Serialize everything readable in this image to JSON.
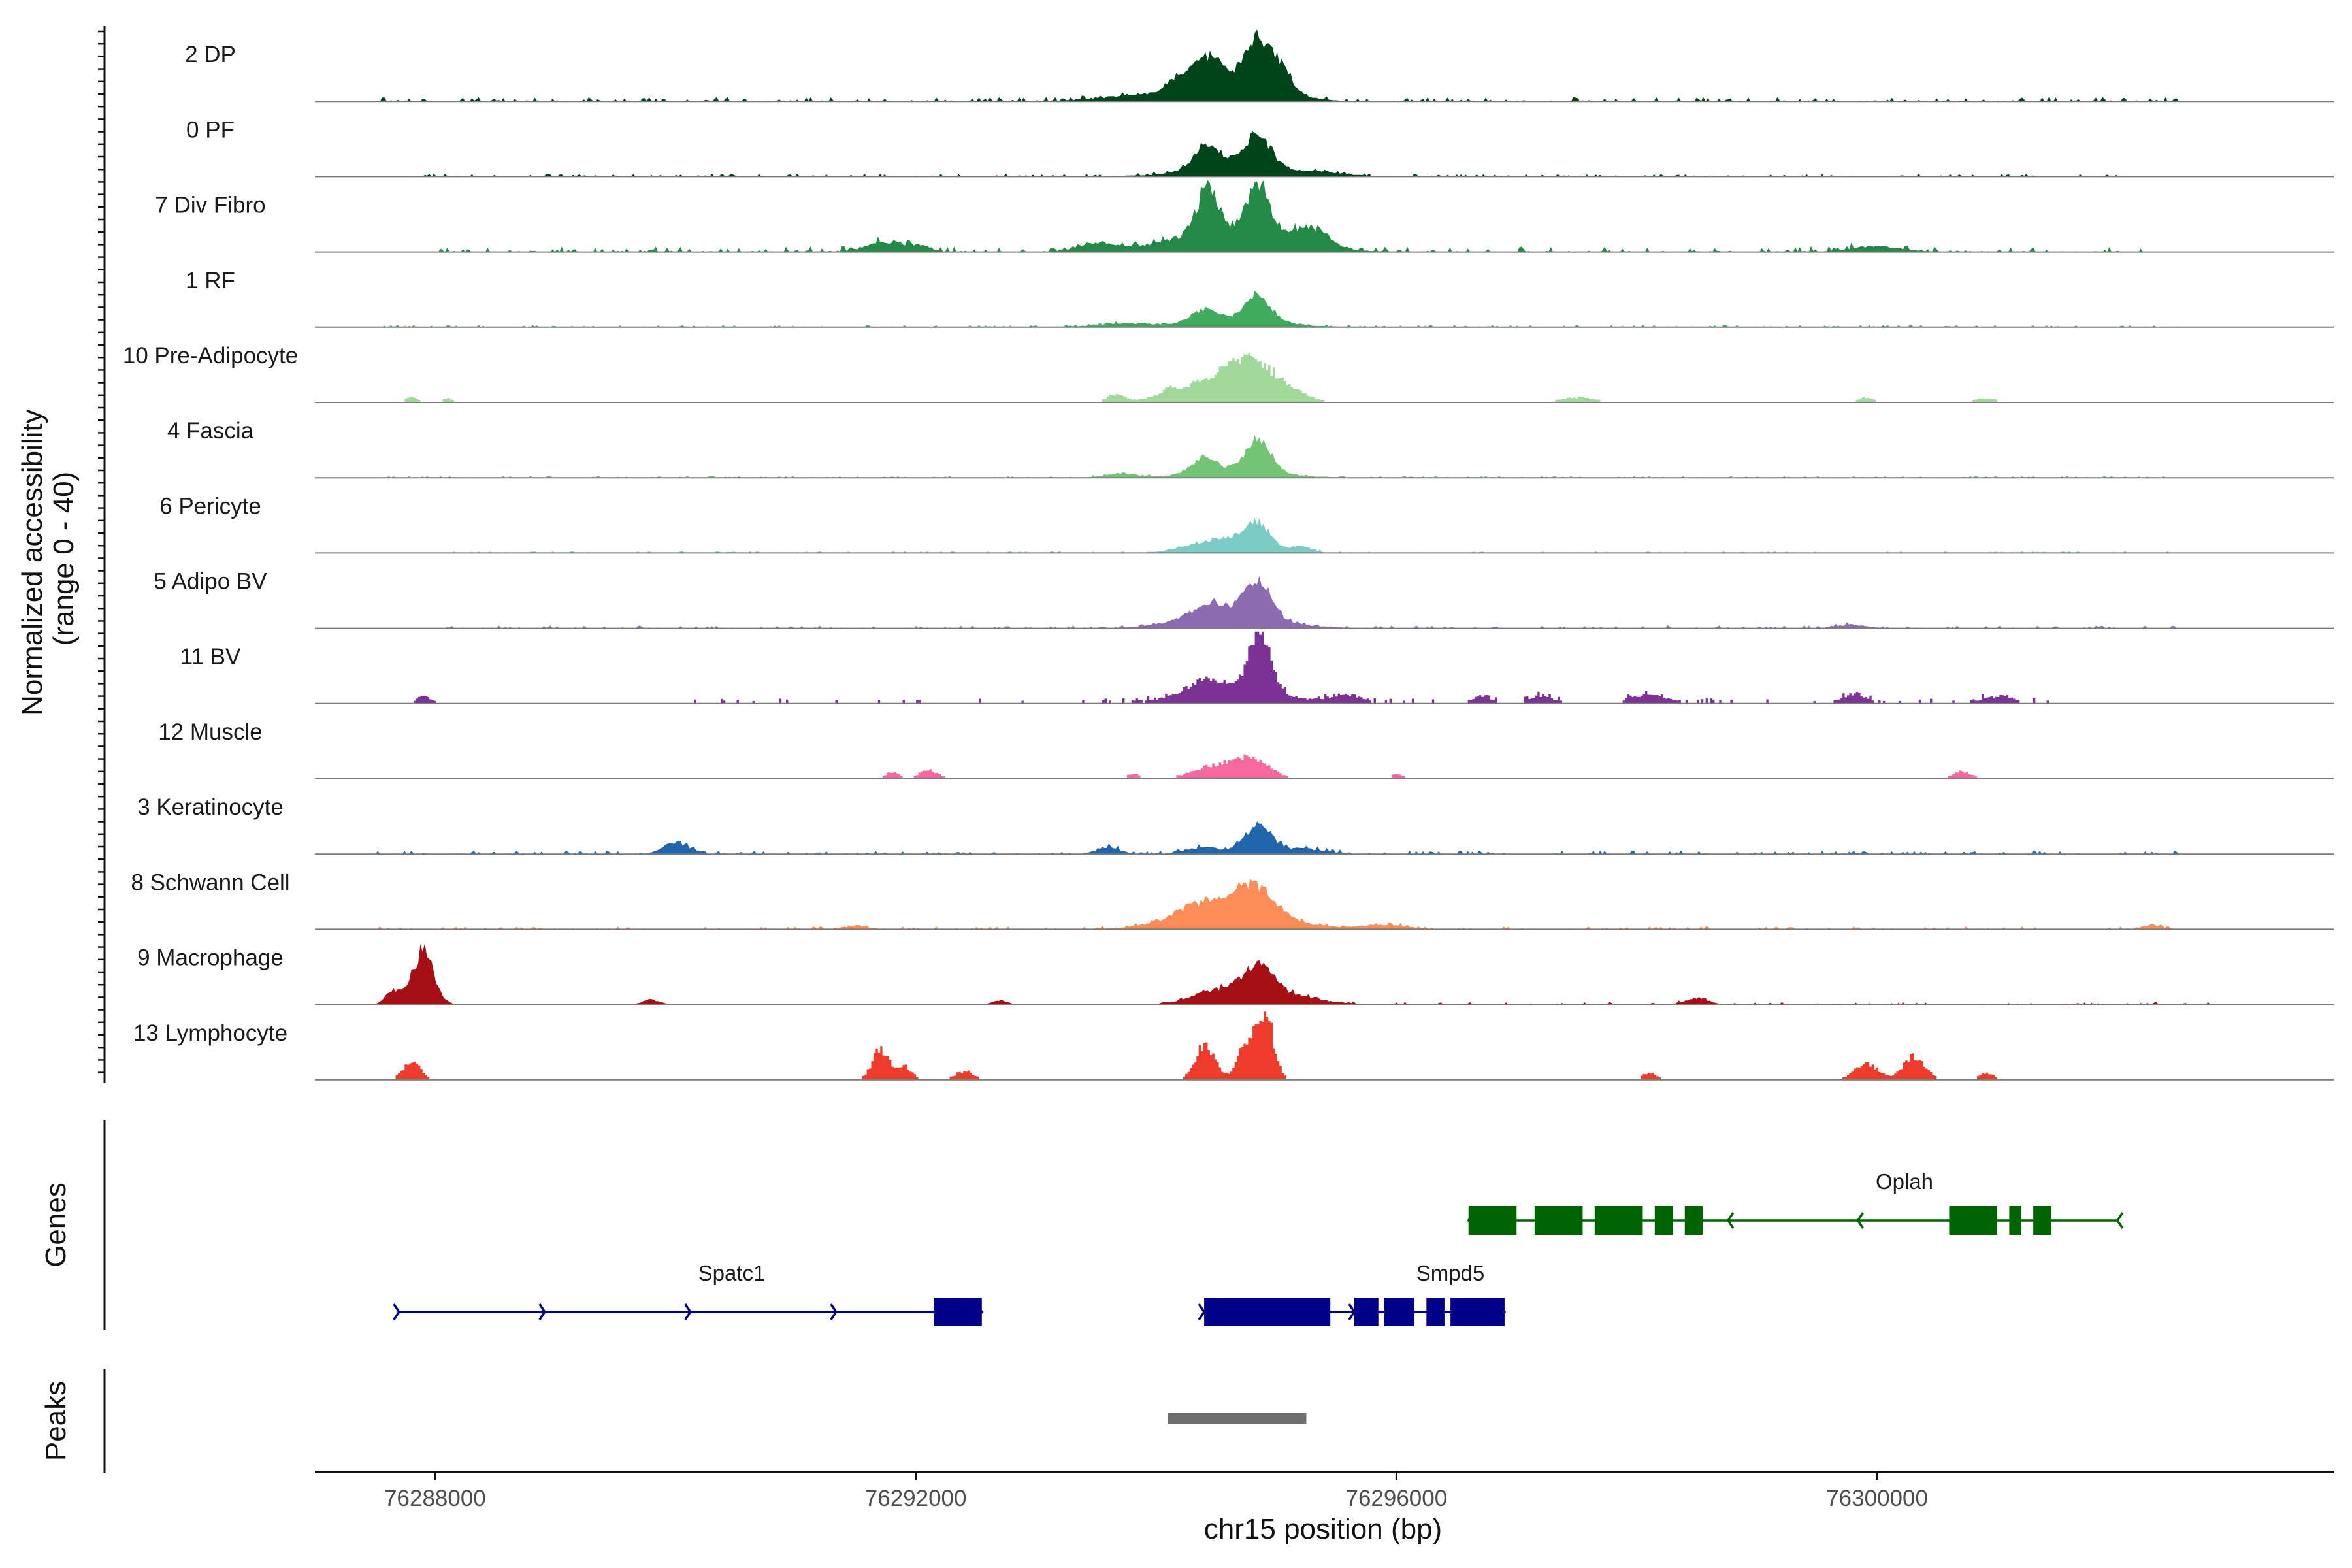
{
  "chart_data": {
    "type": "area",
    "y_axis_title": [
      "Normalized accessibility",
      "(range 0 - 40)"
    ],
    "y_range": [
      0,
      40
    ],
    "x_axis": {
      "label": "chr15 position (bp)",
      "range": [
        76287000,
        76303800
      ],
      "ticks": [
        76288000,
        76292000,
        76296000,
        76300000
      ],
      "tick_labels": [
        "76288000",
        "76292000",
        "76296000",
        "76300000"
      ]
    },
    "tracks": [
      {
        "name": "2 DP",
        "color": "#00441b",
        "shape": "smooth",
        "peaks": [
          [
            76294200,
            0.2,
            100
          ],
          [
            76294440,
            0.44,
            110
          ],
          [
            76294820,
            0.52,
            90
          ],
          [
            76295000,
            0.42,
            110
          ],
          [
            76294650,
            0.25,
            350
          ],
          [
            76293800,
            0.07,
            300
          ]
        ],
        "noise": [
          [
            76287500,
            76302500,
            0.06
          ]
        ]
      },
      {
        "name": "0 PF",
        "color": "#00441b",
        "shape": "smooth",
        "peaks": [
          [
            76294420,
            0.3,
            100
          ],
          [
            76294850,
            0.42,
            110
          ],
          [
            76294650,
            0.18,
            350
          ],
          [
            76295400,
            0.05,
            200
          ]
        ],
        "noise": [
          [
            76287800,
            76302000,
            0.04
          ]
        ]
      },
      {
        "name": "7 Div Fibro",
        "color": "#238b45",
        "shape": "smooth",
        "peaks": [
          [
            76294420,
            0.6,
            80
          ],
          [
            76294850,
            0.62,
            90
          ],
          [
            76294650,
            0.35,
            450
          ],
          [
            76295300,
            0.22,
            120
          ],
          [
            76291700,
            0.14,
            120
          ],
          [
            76292000,
            0.1,
            100
          ],
          [
            76293500,
            0.12,
            150
          ],
          [
            76300000,
            0.08,
            200
          ]
        ],
        "noise": [
          [
            76288000,
            76302200,
            0.08
          ]
        ]
      },
      {
        "name": "1 RF",
        "color": "#41ab5d",
        "shape": "smooth",
        "peaks": [
          [
            76294400,
            0.16,
            100
          ],
          [
            76294850,
            0.34,
            100
          ],
          [
            76294650,
            0.12,
            350
          ],
          [
            76293700,
            0.05,
            200
          ]
        ],
        "noise": [
          [
            76287500,
            76302500,
            0.03
          ]
        ]
      },
      {
        "name": "10 Pre-Adipocyte",
        "color": "#a1d99b",
        "shape": "blocky",
        "peaks": [
          [
            76294800,
            0.4,
            250
          ],
          [
            76294500,
            0.25,
            350
          ],
          [
            76293650,
            0.1,
            70
          ],
          [
            76294100,
            0.06,
            60
          ],
          [
            76297500,
            0.07,
            150
          ],
          [
            76287800,
            0.07,
            60
          ],
          [
            76288100,
            0.06,
            40
          ],
          [
            76299900,
            0.07,
            60
          ],
          [
            76300900,
            0.06,
            90
          ]
        ],
        "noise": []
      },
      {
        "name": "4 Fascia",
        "color": "#74c476",
        "shape": "smooth",
        "peaks": [
          [
            76294400,
            0.2,
            90
          ],
          [
            76294850,
            0.44,
            100
          ],
          [
            76294650,
            0.12,
            350
          ],
          [
            76293700,
            0.06,
            120
          ]
        ],
        "noise": [
          [
            76287500,
            76302500,
            0.03
          ]
        ]
      },
      {
        "name": "6 Pericyte",
        "color": "#7bccc4",
        "shape": "smooth",
        "peaks": [
          [
            76294850,
            0.34,
            100
          ],
          [
            76294550,
            0.2,
            250
          ],
          [
            76295200,
            0.08,
            100
          ]
        ],
        "noise": [
          [
            76288000,
            76302500,
            0.025
          ]
        ]
      },
      {
        "name": "5 Adipo BV",
        "color": "#8c6bb1",
        "shape": "smooth",
        "peaks": [
          [
            76294850,
            0.52,
            110
          ],
          [
            76294450,
            0.2,
            180
          ],
          [
            76294650,
            0.15,
            400
          ],
          [
            76299800,
            0.05,
            120
          ]
        ],
        "noise": [
          [
            76288000,
            76302500,
            0.04
          ]
        ]
      },
      {
        "name": "11 BV",
        "color": "#7b3294",
        "shape": "blocky",
        "peaks": [
          [
            76294850,
            0.9,
            90
          ],
          [
            76294400,
            0.2,
            150
          ],
          [
            76294650,
            0.15,
            450
          ],
          [
            76295600,
            0.1,
            120
          ],
          [
            76296700,
            0.1,
            80
          ],
          [
            76297200,
            0.1,
            100
          ],
          [
            76298100,
            0.12,
            150
          ],
          [
            76299800,
            0.13,
            100
          ],
          [
            76301000,
            0.1,
            120
          ],
          [
            76287900,
            0.1,
            60
          ]
        ],
        "noise": [
          [
            76290000,
            76301500,
            0.07
          ]
        ]
      },
      {
        "name": "12 Muscle",
        "color": "#f768a1",
        "shape": "blocky",
        "peaks": [
          [
            76294800,
            0.22,
            150
          ],
          [
            76294500,
            0.18,
            200
          ],
          [
            76292100,
            0.12,
            80
          ],
          [
            76291800,
            0.1,
            60
          ],
          [
            76300700,
            0.1,
            80
          ],
          [
            76293800,
            0.07,
            50
          ],
          [
            76296000,
            0.07,
            50
          ]
        ],
        "noise": []
      },
      {
        "name": "3 Keratinocyte",
        "color": "#2166ac",
        "shape": "smooth",
        "peaks": [
          [
            76294850,
            0.38,
            110
          ],
          [
            76290000,
            0.17,
            100
          ],
          [
            76293600,
            0.1,
            90
          ],
          [
            76294400,
            0.09,
            150
          ],
          [
            76295200,
            0.07,
            200
          ]
        ],
        "noise": [
          [
            76287500,
            76302500,
            0.05
          ]
        ]
      },
      {
        "name": "8 Schwann Cell",
        "color": "#fc8d59",
        "shape": "smooth",
        "peaks": [
          [
            76294800,
            0.45,
            180
          ],
          [
            76294350,
            0.2,
            200
          ],
          [
            76294650,
            0.18,
            450
          ],
          [
            76295900,
            0.06,
            180
          ],
          [
            76291500,
            0.05,
            100
          ],
          [
            76302300,
            0.05,
            80
          ]
        ],
        "noise": [
          [
            76287500,
            76302500,
            0.04
          ]
        ]
      },
      {
        "name": "9 Macrophage",
        "color": "#a50f15",
        "shape": "smooth",
        "peaks": [
          [
            76287900,
            0.75,
            90
          ],
          [
            76287650,
            0.2,
            60
          ],
          [
            76294850,
            0.4,
            120
          ],
          [
            76294500,
            0.17,
            200
          ],
          [
            76295000,
            0.15,
            300
          ],
          [
            76298500,
            0.08,
            100
          ],
          [
            76289800,
            0.07,
            70
          ],
          [
            76292700,
            0.06,
            60
          ]
        ],
        "noise": [
          [
            76294000,
            76302800,
            0.04
          ]
        ]
      },
      {
        "name": "13 Lymphocyte",
        "color": "#ef3b2c",
        "shape": "blocky",
        "peaks": [
          [
            76294900,
            0.85,
            70
          ],
          [
            76294750,
            0.5,
            80
          ],
          [
            76294400,
            0.48,
            80
          ],
          [
            76287800,
            0.28,
            70
          ],
          [
            76291700,
            0.42,
            70
          ],
          [
            76291900,
            0.18,
            60
          ],
          [
            76292400,
            0.12,
            80
          ],
          [
            76299900,
            0.22,
            100
          ],
          [
            76300300,
            0.32,
            90
          ],
          [
            76300900,
            0.1,
            60
          ],
          [
            76298100,
            0.1,
            60
          ]
        ],
        "noise": []
      }
    ],
    "genes_label": "Genes",
    "peaks_label": "Peaks",
    "genes": [
      {
        "name": "Oplah",
        "strand": "-",
        "color": "#006400",
        "start": 76296600,
        "end": 76302000,
        "exons": [
          [
            76296600,
            76297000
          ],
          [
            76297150,
            76297550
          ],
          [
            76297650,
            76298050
          ],
          [
            76298150,
            76298300
          ],
          [
            76298400,
            76298550
          ],
          [
            76300600,
            76301000
          ],
          [
            76301100,
            76301200
          ],
          [
            76301300,
            76301450
          ]
        ]
      },
      {
        "name": "Spatc1",
        "strand": "+",
        "color": "#00008b",
        "start": 76287700,
        "end": 76292550,
        "exons": [
          [
            76292150,
            76292550
          ]
        ]
      },
      {
        "name": "Smpd5",
        "strand": "+",
        "color": "#00008b",
        "start": 76294400,
        "end": 76296900,
        "exons": [
          [
            76294400,
            76295450
          ],
          [
            76295650,
            76295850
          ],
          [
            76295900,
            76296150
          ],
          [
            76296250,
            76296400
          ],
          [
            76296450,
            76296900
          ]
        ]
      }
    ],
    "peaks": [
      [
        76294100,
        76295250
      ]
    ]
  }
}
